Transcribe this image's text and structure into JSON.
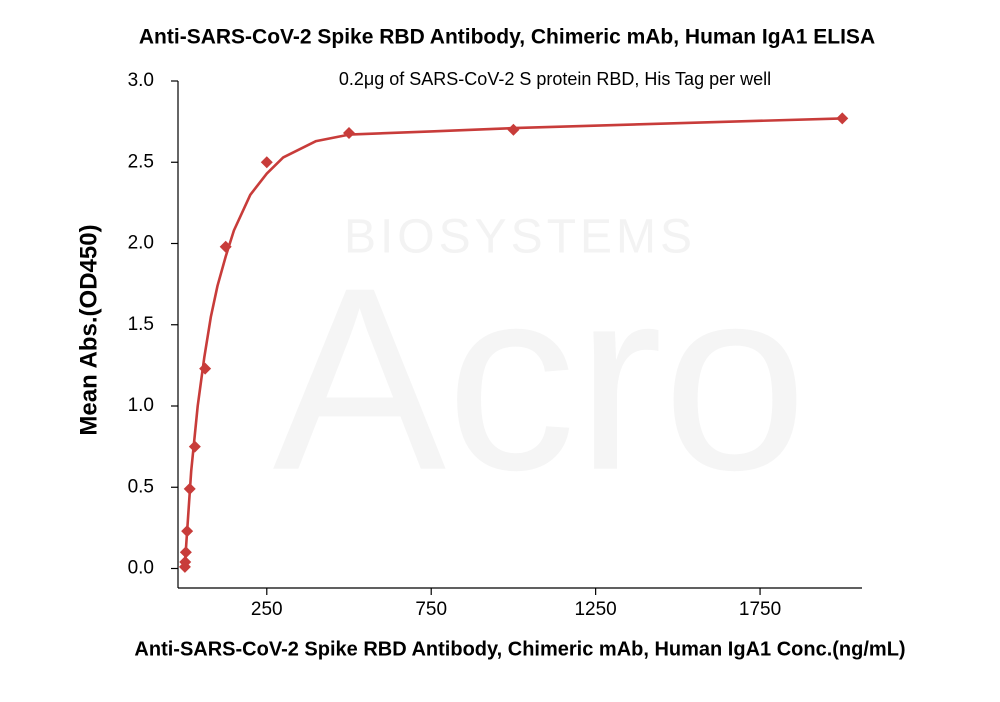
{
  "chart_data": {
    "type": "scatter",
    "title": "Anti-SARS-CoV-2 Spike RBD Antibody, Chimeric mAb, Human IgA1 ELISA",
    "subtitle": "0.2μg of SARS-CoV-2 S protein RBD, His Tag per well",
    "watermark": [
      "Acro",
      "BIOSYSTEMS"
    ],
    "x_label": "Anti-SARS-CoV-2 Spike RBD Antibody, Chimeric mAb, Human IgA1 Conc.(ng/mL)",
    "y_label": "Mean Abs.(OD450)",
    "color": "#c83c3a",
    "x": [
      0.98,
      1.95,
      3.9,
      7.8,
      15.6,
      31.25,
      62.5,
      125,
      250,
      500,
      1000,
      2000
    ],
    "values": [
      0.01,
      0.04,
      0.1,
      0.23,
      0.49,
      0.75,
      1.23,
      1.98,
      2.5,
      2.68,
      2.7,
      2.77
    ],
    "fit": {
      "x": [
        0,
        10,
        20,
        40,
        60,
        80,
        100,
        125,
        150,
        200,
        250,
        300,
        400,
        500,
        750,
        1000,
        1500,
        2000
      ],
      "values": [
        0,
        0.3,
        0.6,
        1.0,
        1.3,
        1.55,
        1.74,
        1.92,
        2.08,
        2.3,
        2.43,
        2.53,
        2.63,
        2.67,
        2.69,
        2.71,
        2.74,
        2.77
      ]
    },
    "xlim": [
      -20,
      2060
    ],
    "ylim": [
      -0.12,
      3.0
    ],
    "xticks": [
      250,
      750,
      1250,
      1750
    ],
    "yticks": [
      {
        "value": 0,
        "label": "0.0"
      },
      0.5,
      {
        "value": 1,
        "label": "1.0"
      },
      1.5,
      {
        "value": 2,
        "label": "2.0"
      },
      2.5,
      {
        "value": 3,
        "label": "3.0"
      }
    ]
  }
}
